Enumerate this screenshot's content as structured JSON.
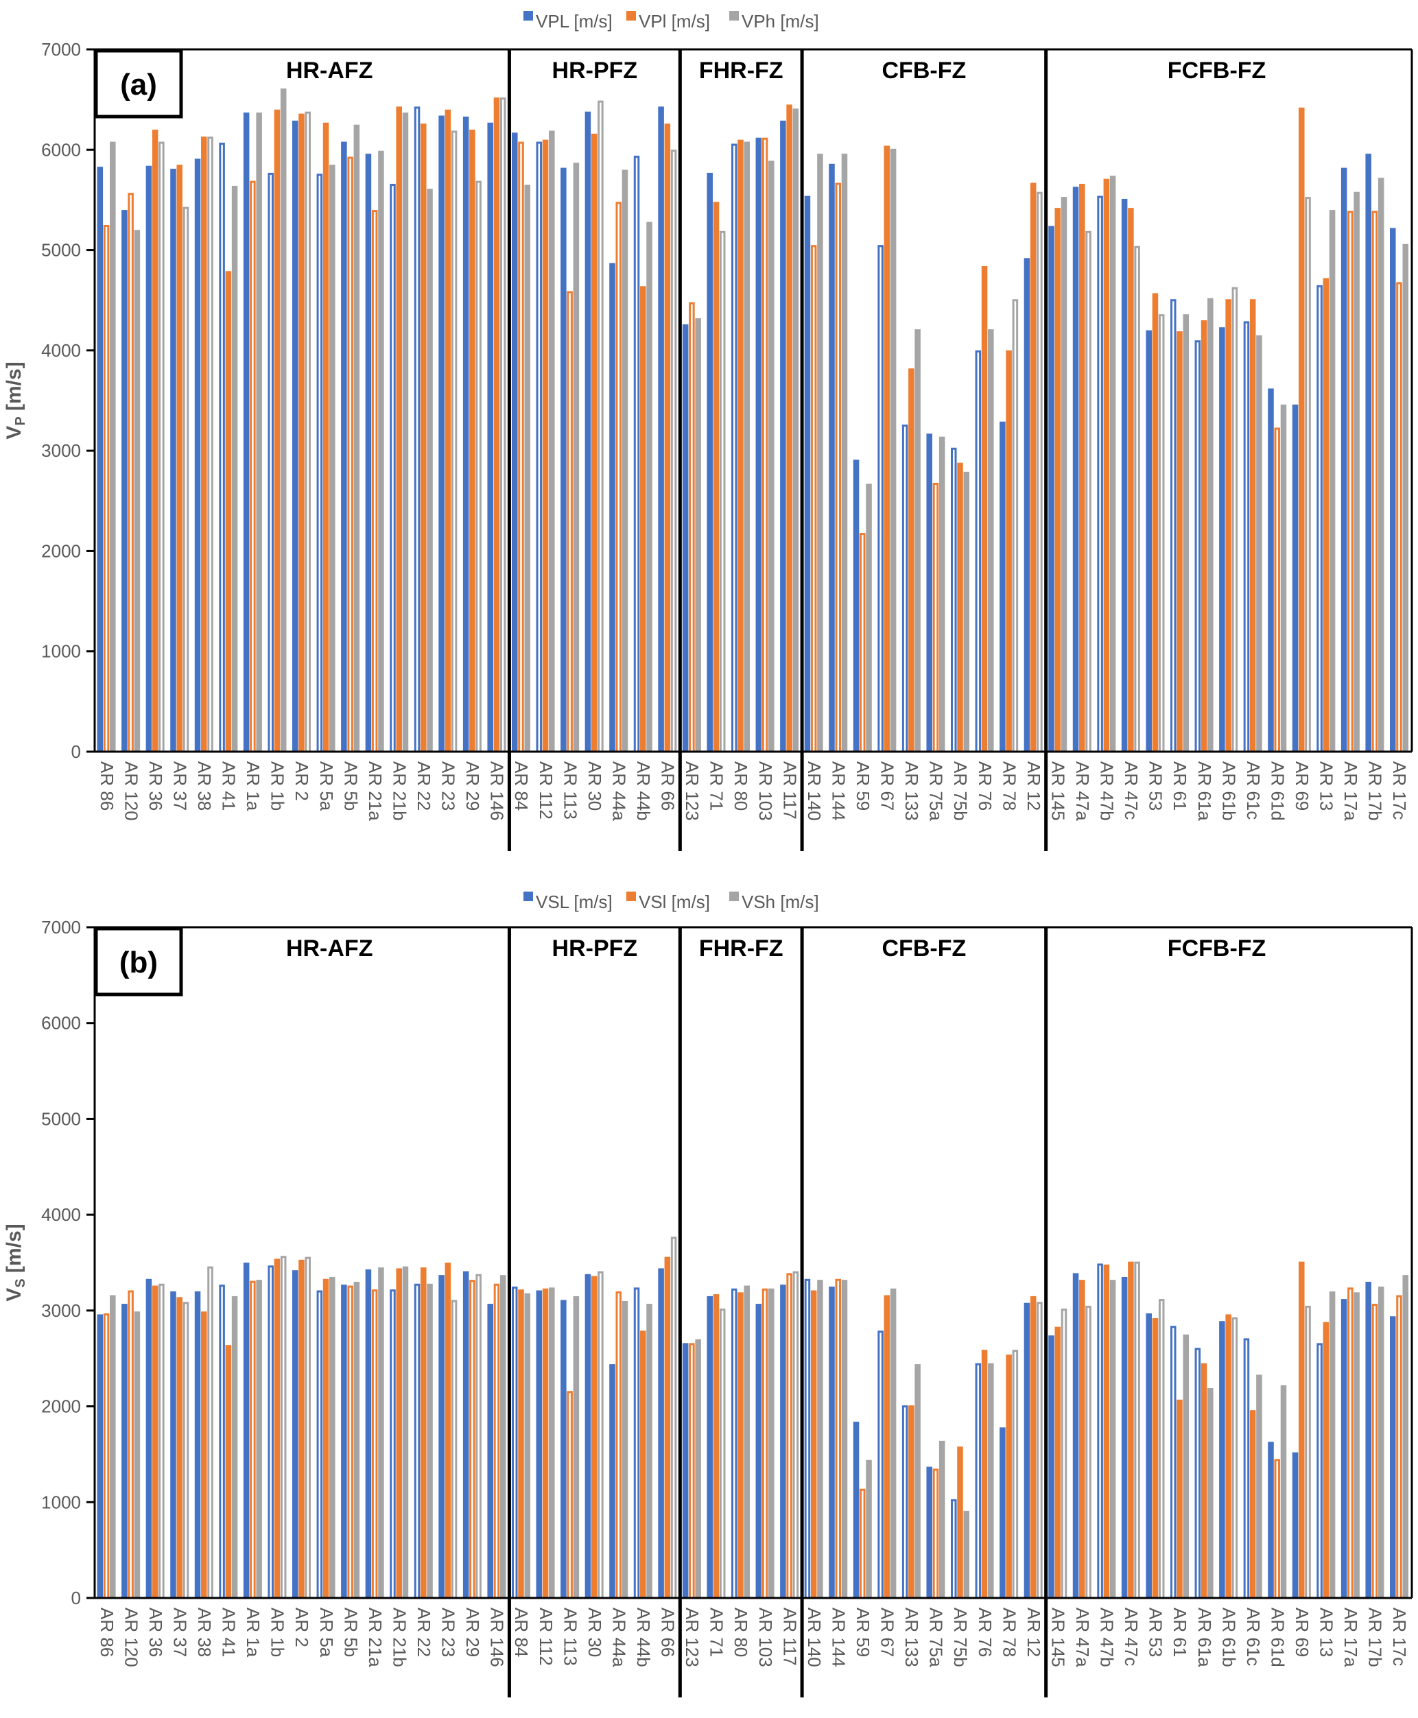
{
  "colors": {
    "L": "#4472C4",
    "I": "#ED7D31",
    "H": "#A5A5A5"
  },
  "chart_data": [
    {
      "type": "bar",
      "panel": "(a)",
      "ylabel_main": "V",
      "ylabel_sub": "P",
      "ylabel_unit": " [m/s]",
      "ylim": [
        0,
        7000
      ],
      "yticks": [
        0,
        1000,
        2000,
        3000,
        4000,
        5000,
        6000,
        7000
      ],
      "legend_position": "top-center",
      "legend": [
        "VPL [m/s]",
        "VPl [m/s]",
        "VPh [m/s]"
      ],
      "groups": [
        {
          "name": "HR-AFZ",
          "start": 0,
          "count": 17
        },
        {
          "name": "HR-PFZ",
          "start": 17,
          "count": 7
        },
        {
          "name": "FHR-FZ",
          "start": 24,
          "count": 5
        },
        {
          "name": "CFB-FZ",
          "start": 29,
          "count": 10
        },
        {
          "name": "FCFB-FZ",
          "start": 39,
          "count": 14
        }
      ],
      "categories": [
        "AR 86",
        "AR 120",
        "AR 36",
        "AR 37",
        "AR 38",
        "AR 41",
        "AR 1a",
        "AR 1b",
        "AR 2",
        "AR 5a",
        "AR 5b",
        "AR 21a",
        "AR 21b",
        "AR 22",
        "AR 23",
        "AR 29",
        "AR 146",
        "AR 84",
        "AR 112",
        "AR 113",
        "AR 30",
        "AR 44a",
        "AR 44b",
        "AR 66",
        "AR 123",
        "AR 71",
        "AR 80",
        "AR 103",
        "AR 117",
        "AR 140",
        "AR 144",
        "AR 59",
        "AR 67",
        "AR 133",
        "AR 75a",
        "AR 75b",
        "AR 76",
        "AR 78",
        "AR 12",
        "AR 145",
        "AR 47a",
        "AR 47b",
        "AR 47c",
        "AR 53",
        "AR 61",
        "AR 61a",
        "AR 61b",
        "AR 61c",
        "AR 61d",
        "AR 69",
        "AR 13",
        "AR 17a",
        "AR 17b",
        "AR 17c"
      ],
      "series": [
        {
          "name": "VPL [m/s]",
          "key": "L",
          "values": [
            5830,
            5400,
            5840,
            5810,
            5910,
            6070,
            6370,
            5770,
            6290,
            5760,
            6080,
            5960,
            5660,
            6430,
            6340,
            6330,
            6270,
            6170,
            6080,
            5820,
            6380,
            4870,
            5940,
            6430,
            4260,
            5770,
            6060,
            6120,
            6290,
            5540,
            5860,
            2910,
            5050,
            3260,
            3170,
            3030,
            4000,
            3290,
            4920,
            5240,
            5630,
            5540,
            5510,
            4200,
            4510,
            4100,
            4230,
            4290,
            3620,
            3460,
            4650,
            5820,
            5960,
            5220
          ],
          "filled": [
            true,
            true,
            true,
            true,
            true,
            false,
            true,
            false,
            true,
            false,
            true,
            true,
            false,
            false,
            true,
            true,
            true,
            true,
            false,
            true,
            true,
            true,
            false,
            true,
            true,
            true,
            false,
            true,
            true,
            true,
            true,
            true,
            false,
            false,
            true,
            false,
            false,
            true,
            true,
            true,
            true,
            false,
            true,
            true,
            false,
            false,
            true,
            false,
            true,
            true,
            false,
            true,
            true,
            true
          ]
        },
        {
          "name": "VPl [m/s]",
          "key": "I",
          "values": [
            5250,
            5570,
            6200,
            5850,
            6130,
            4790,
            5690,
            6400,
            6360,
            6270,
            5930,
            5400,
            6430,
            6260,
            6400,
            6200,
            6520,
            6080,
            6100,
            4590,
            6160,
            5480,
            4640,
            6260,
            4480,
            5480,
            6100,
            6120,
            6450,
            5050,
            5670,
            2180,
            6040,
            3820,
            2680,
            2880,
            4840,
            4000,
            5670,
            5420,
            5660,
            5710,
            5420,
            4570,
            4190,
            4300,
            4510,
            4510,
            3230,
            6420,
            4720,
            5390,
            5390,
            4680
          ],
          "filled": [
            false,
            false,
            true,
            true,
            true,
            true,
            false,
            true,
            true,
            true,
            false,
            false,
            true,
            true,
            true,
            true,
            true,
            false,
            true,
            false,
            true,
            false,
            true,
            true,
            false,
            true,
            true,
            false,
            true,
            false,
            false,
            false,
            true,
            true,
            false,
            true,
            true,
            true,
            true,
            true,
            true,
            true,
            true,
            true,
            true,
            true,
            true,
            true,
            false,
            true,
            true,
            false,
            false,
            false
          ]
        },
        {
          "name": "VPh [m/s]",
          "key": "H",
          "values": [
            6080,
            5200,
            6080,
            5430,
            6130,
            5640,
            6370,
            6610,
            6380,
            5850,
            6250,
            5990,
            6370,
            5610,
            6190,
            5690,
            6520,
            5650,
            6190,
            5870,
            6490,
            5800,
            5280,
            6000,
            4320,
            5190,
            6080,
            5890,
            6410,
            5960,
            5960,
            2670,
            6010,
            4210,
            3140,
            2790,
            4210,
            4510,
            5580,
            5530,
            5190,
            5740,
            5040,
            4360,
            4360,
            4520,
            4630,
            4150,
            3460,
            5530,
            5400,
            5580,
            5720,
            5060
          ],
          "filled": [
            true,
            true,
            false,
            false,
            false,
            true,
            true,
            true,
            false,
            true,
            true,
            true,
            true,
            true,
            false,
            false,
            false,
            true,
            true,
            true,
            false,
            true,
            true,
            false,
            true,
            false,
            true,
            true,
            true,
            true,
            true,
            true,
            true,
            true,
            true,
            true,
            true,
            false,
            false,
            true,
            false,
            true,
            false,
            false,
            true,
            true,
            false,
            true,
            true,
            false,
            true,
            true,
            true,
            true
          ]
        }
      ]
    },
    {
      "type": "bar",
      "panel": "(b)",
      "ylabel_main": "V",
      "ylabel_sub": "S",
      "ylabel_unit": " [m/s]",
      "ylim": [
        0,
        7000
      ],
      "yticks": [
        0,
        1000,
        2000,
        3000,
        4000,
        5000,
        6000,
        7000
      ],
      "legend_position": "top-center",
      "legend": [
        "VSL [m/s]",
        "VSl [m/s]",
        "VSh [m/s]"
      ],
      "groups": [
        {
          "name": "HR-AFZ",
          "start": 0,
          "count": 17
        },
        {
          "name": "HR-PFZ",
          "start": 17,
          "count": 7
        },
        {
          "name": "FHR-FZ",
          "start": 24,
          "count": 5
        },
        {
          "name": "CFB-FZ",
          "start": 29,
          "count": 10
        },
        {
          "name": "FCFB-FZ",
          "start": 39,
          "count": 14
        }
      ],
      "categories": [
        "AR 86",
        "AR 120",
        "AR 36",
        "AR 37",
        "AR 38",
        "AR 41",
        "AR 1a",
        "AR 1b",
        "AR 2",
        "AR 5a",
        "AR 5b",
        "AR 21a",
        "AR 21b",
        "AR 22",
        "AR 23",
        "AR 29",
        "AR 146",
        "AR 84",
        "AR 112",
        "AR 113",
        "AR 30",
        "AR 44a",
        "AR 44b",
        "AR 66",
        "AR 123",
        "AR 71",
        "AR 80",
        "AR 103",
        "AR 117",
        "AR 140",
        "AR 144",
        "AR 59",
        "AR 67",
        "AR 133",
        "AR 75a",
        "AR 75b",
        "AR 76",
        "AR 78",
        "AR 12",
        "AR 145",
        "AR 47a",
        "AR 47b",
        "AR 47c",
        "AR 53",
        "AR 61",
        "AR 61a",
        "AR 61b",
        "AR 61c",
        "AR 61d",
        "AR 69",
        "AR 13",
        "AR 17a",
        "AR 17b",
        "AR 17c"
      ],
      "series": [
        {
          "name": "VSL [m/s]",
          "key": "L",
          "values": [
            2960,
            3070,
            3330,
            3200,
            3200,
            3270,
            3500,
            3470,
            3420,
            3210,
            3270,
            3430,
            3220,
            3280,
            3370,
            3410,
            3070,
            3250,
            3210,
            3110,
            3380,
            2440,
            3240,
            3440,
            2660,
            3150,
            3230,
            3070,
            3270,
            3330,
            3250,
            1840,
            2790,
            2010,
            1370,
            1030,
            2450,
            1780,
            3080,
            2740,
            3390,
            3490,
            3350,
            2970,
            2840,
            2610,
            2890,
            2710,
            1630,
            1520,
            2660,
            3120,
            3300,
            2940
          ],
          "filled": [
            true,
            true,
            true,
            true,
            true,
            false,
            true,
            false,
            true,
            false,
            true,
            true,
            false,
            false,
            true,
            true,
            true,
            false,
            true,
            true,
            true,
            true,
            false,
            true,
            true,
            true,
            false,
            true,
            true,
            false,
            true,
            true,
            false,
            false,
            true,
            false,
            false,
            true,
            true,
            true,
            true,
            false,
            true,
            true,
            false,
            false,
            true,
            false,
            true,
            true,
            false,
            true,
            true,
            true
          ]
        },
        {
          "name": "VSl [m/s]",
          "key": "I",
          "values": [
            2970,
            3210,
            3260,
            3140,
            2990,
            2640,
            3310,
            3540,
            3530,
            3330,
            3260,
            3220,
            3440,
            3450,
            3500,
            3320,
            3280,
            3220,
            3230,
            2160,
            3360,
            3200,
            2790,
            3560,
            2660,
            3170,
            3190,
            3230,
            3390,
            3210,
            3330,
            1140,
            3160,
            2010,
            1350,
            1580,
            2590,
            2540,
            3150,
            2830,
            3320,
            3480,
            3510,
            2920,
            2070,
            2450,
            2960,
            1960,
            1450,
            3510,
            2880,
            3240,
            3070,
            3160
          ],
          "filled": [
            false,
            false,
            true,
            true,
            true,
            true,
            false,
            true,
            true,
            true,
            false,
            false,
            true,
            true,
            true,
            false,
            false,
            true,
            true,
            false,
            true,
            false,
            true,
            true,
            false,
            true,
            true,
            false,
            false,
            true,
            false,
            false,
            true,
            true,
            false,
            true,
            true,
            true,
            true,
            true,
            true,
            true,
            true,
            true,
            true,
            true,
            true,
            true,
            false,
            true,
            true,
            false,
            false,
            false
          ]
        },
        {
          "name": "VSh [m/s]",
          "key": "H",
          "values": [
            3160,
            2990,
            3280,
            3090,
            3460,
            3150,
            3320,
            3570,
            3560,
            3350,
            3300,
            3450,
            3460,
            3280,
            3110,
            3380,
            3370,
            3180,
            3240,
            3150,
            3410,
            3100,
            3070,
            3770,
            2700,
            3020,
            3260,
            3230,
            3410,
            3320,
            3320,
            1440,
            3230,
            2440,
            1640,
            910,
            2450,
            2590,
            3090,
            3020,
            3050,
            3320,
            3510,
            3120,
            2750,
            2190,
            2930,
            2330,
            2220,
            3050,
            3200,
            3190,
            3250,
            3370
          ],
          "filled": [
            true,
            true,
            false,
            false,
            false,
            true,
            true,
            false,
            false,
            true,
            true,
            true,
            true,
            true,
            false,
            false,
            true,
            true,
            true,
            true,
            false,
            true,
            true,
            false,
            true,
            false,
            true,
            true,
            false,
            true,
            true,
            true,
            true,
            true,
            true,
            true,
            true,
            false,
            false,
            false,
            false,
            true,
            false,
            false,
            true,
            true,
            false,
            true,
            true,
            false,
            true,
            true,
            true,
            true
          ]
        }
      ]
    }
  ]
}
